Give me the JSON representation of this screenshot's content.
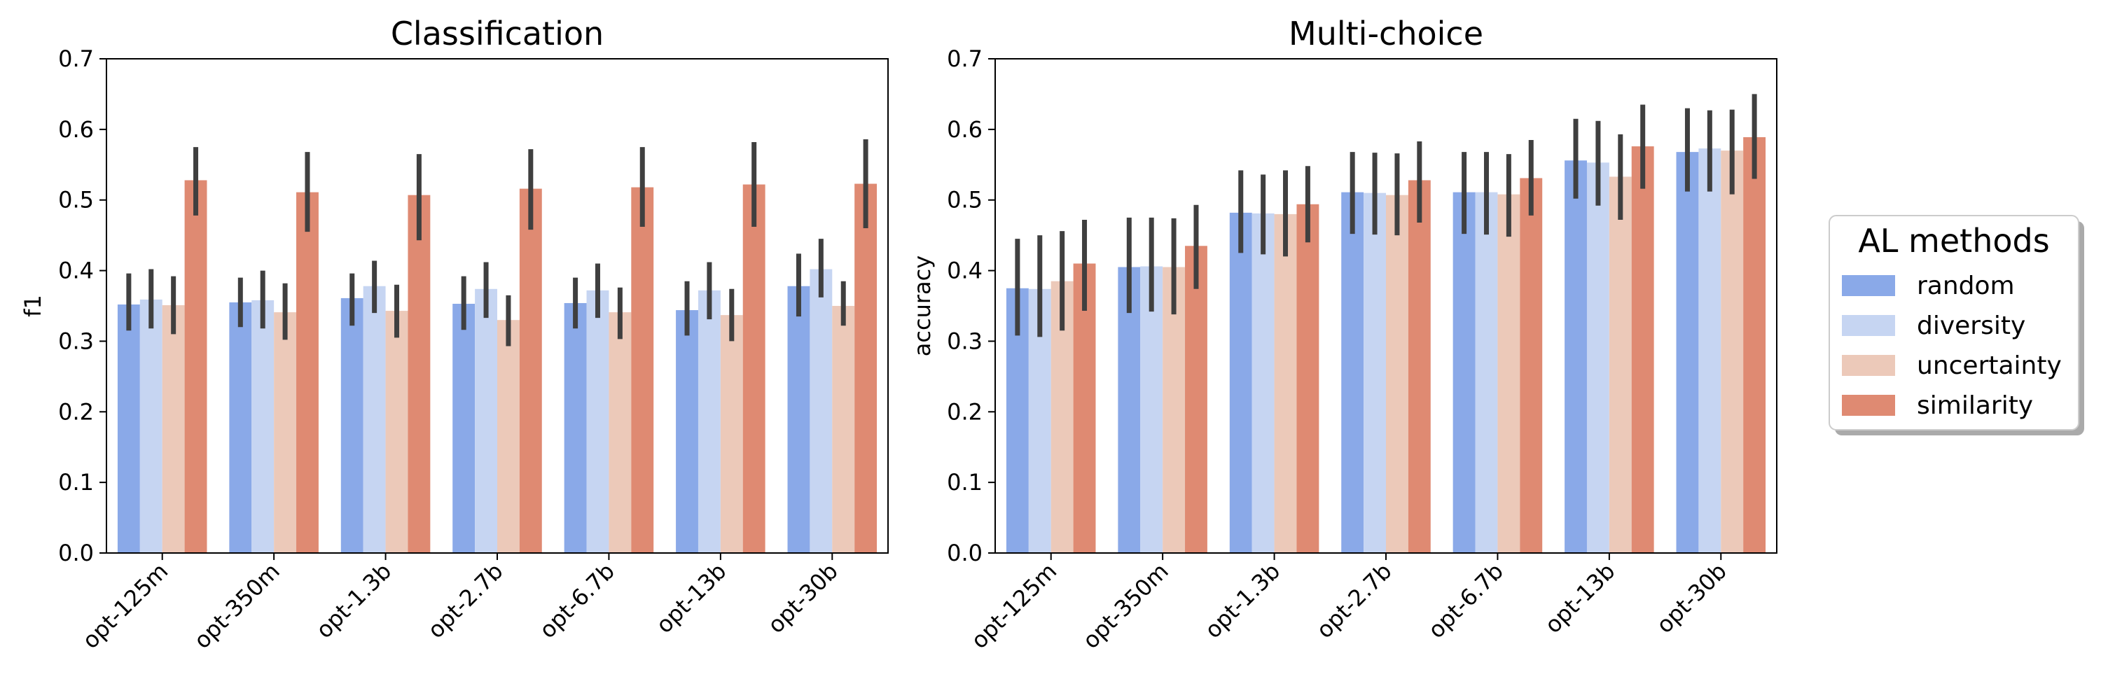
{
  "chart_data": [
    {
      "type": "bar",
      "title": "Classification",
      "xlabel": "",
      "ylabel": "f1",
      "ylim": [
        0,
        0.7
      ],
      "yticks": [
        "0.0",
        "0.1",
        "0.2",
        "0.3",
        "0.4",
        "0.5",
        "0.6",
        "0.7"
      ],
      "categories": [
        "opt-125m",
        "opt-350m",
        "opt-1.3b",
        "opt-2.7b",
        "opt-6.7b",
        "opt-13b",
        "opt-30b"
      ],
      "series": [
        {
          "name": "random",
          "values": [
            0.352,
            0.355,
            0.361,
            0.353,
            0.354,
            0.344,
            0.378
          ],
          "err_low": [
            0.315,
            0.32,
            0.322,
            0.316,
            0.318,
            0.308,
            0.335
          ],
          "err_high": [
            0.396,
            0.39,
            0.396,
            0.392,
            0.39,
            0.385,
            0.424
          ]
        },
        {
          "name": "diversity",
          "values": [
            0.359,
            0.358,
            0.378,
            0.374,
            0.372,
            0.372,
            0.402
          ],
          "err_low": [
            0.318,
            0.318,
            0.34,
            0.333,
            0.333,
            0.331,
            0.362
          ],
          "err_high": [
            0.402,
            0.4,
            0.414,
            0.412,
            0.41,
            0.412,
            0.445
          ]
        },
        {
          "name": "uncertainty",
          "values": [
            0.351,
            0.341,
            0.343,
            0.33,
            0.341,
            0.337,
            0.35
          ],
          "err_low": [
            0.31,
            0.302,
            0.305,
            0.293,
            0.303,
            0.3,
            0.322
          ],
          "err_high": [
            0.392,
            0.382,
            0.38,
            0.365,
            0.376,
            0.374,
            0.385
          ]
        },
        {
          "name": "similarity",
          "values": [
            0.528,
            0.511,
            0.507,
            0.516,
            0.518,
            0.522,
            0.523
          ],
          "err_low": [
            0.478,
            0.455,
            0.443,
            0.458,
            0.462,
            0.462,
            0.46
          ],
          "err_high": [
            0.575,
            0.568,
            0.565,
            0.572,
            0.575,
            0.582,
            0.586
          ]
        }
      ]
    },
    {
      "type": "bar",
      "title": "Multi-choice",
      "xlabel": "",
      "ylabel": "accuracy",
      "ylim": [
        0,
        0.7
      ],
      "yticks": [
        "0.0",
        "0.1",
        "0.2",
        "0.3",
        "0.4",
        "0.5",
        "0.6",
        "0.7"
      ],
      "categories": [
        "opt-125m",
        "opt-350m",
        "opt-1.3b",
        "opt-2.7b",
        "opt-6.7b",
        "opt-13b",
        "opt-30b"
      ],
      "series": [
        {
          "name": "random",
          "values": [
            0.375,
            0.405,
            0.482,
            0.511,
            0.511,
            0.556,
            0.568
          ],
          "err_low": [
            0.308,
            0.34,
            0.425,
            0.452,
            0.452,
            0.502,
            0.512
          ],
          "err_high": [
            0.445,
            0.475,
            0.542,
            0.568,
            0.568,
            0.615,
            0.63
          ]
        },
        {
          "name": "diversity",
          "values": [
            0.374,
            0.406,
            0.481,
            0.51,
            0.511,
            0.553,
            0.573
          ],
          "err_low": [
            0.306,
            0.342,
            0.423,
            0.451,
            0.451,
            0.492,
            0.512
          ],
          "err_high": [
            0.45,
            0.475,
            0.536,
            0.567,
            0.568,
            0.612,
            0.627
          ]
        },
        {
          "name": "uncertainty",
          "values": [
            0.385,
            0.405,
            0.48,
            0.507,
            0.508,
            0.533,
            0.57
          ],
          "err_low": [
            0.315,
            0.338,
            0.42,
            0.45,
            0.448,
            0.472,
            0.508
          ],
          "err_high": [
            0.456,
            0.474,
            0.542,
            0.566,
            0.565,
            0.593,
            0.628
          ]
        },
        {
          "name": "similarity",
          "values": [
            0.41,
            0.435,
            0.494,
            0.528,
            0.531,
            0.576,
            0.589
          ],
          "err_low": [
            0.343,
            0.374,
            0.44,
            0.468,
            0.478,
            0.516,
            0.53
          ],
          "err_high": [
            0.472,
            0.493,
            0.548,
            0.583,
            0.585,
            0.635,
            0.65
          ]
        }
      ]
    }
  ],
  "legend": {
    "title": "AL methods",
    "location": "center-right",
    "items": [
      "random",
      "diversity",
      "uncertainty",
      "similarity"
    ]
  },
  "colors": {
    "random": "#8aa9e8",
    "diversity": "#c6d5f2",
    "uncertainty": "#ecc9b9",
    "similarity": "#df8a72",
    "errorbar": "#3f3f3f"
  }
}
